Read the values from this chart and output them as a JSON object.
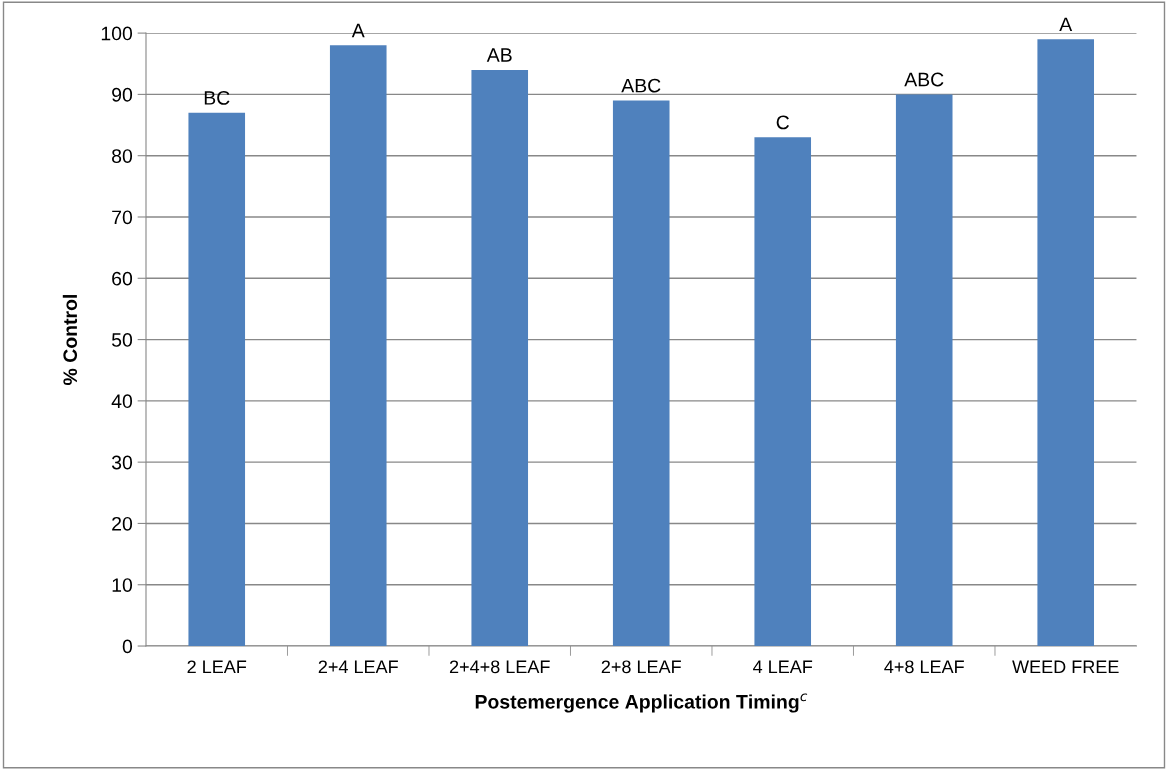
{
  "chart_data": {
    "type": "bar",
    "xlabel": "Postemergence Application Timing$^{c}$",
    "ylabel": "% Control",
    "categories": [
      "2 LEAF",
      "2+4 LEAF",
      "2+4+8 LEAF",
      "2+8 LEAF",
      "4 LEAF",
      "4+8 LEAF",
      "WEED FREE"
    ],
    "values": [
      87,
      98,
      94,
      89,
      83,
      90,
      99
    ],
    "value_labels": [
      "BC",
      "A",
      "AB",
      "ABC",
      "C",
      "ABC",
      "A"
    ],
    "color": "#4f81bd",
    "ylim": [
      0,
      100
    ],
    "yticks": [
      0,
      10,
      20,
      30,
      40,
      50,
      60,
      70,
      80,
      90,
      100
    ],
    "grid": "y",
    "legend": false
  }
}
